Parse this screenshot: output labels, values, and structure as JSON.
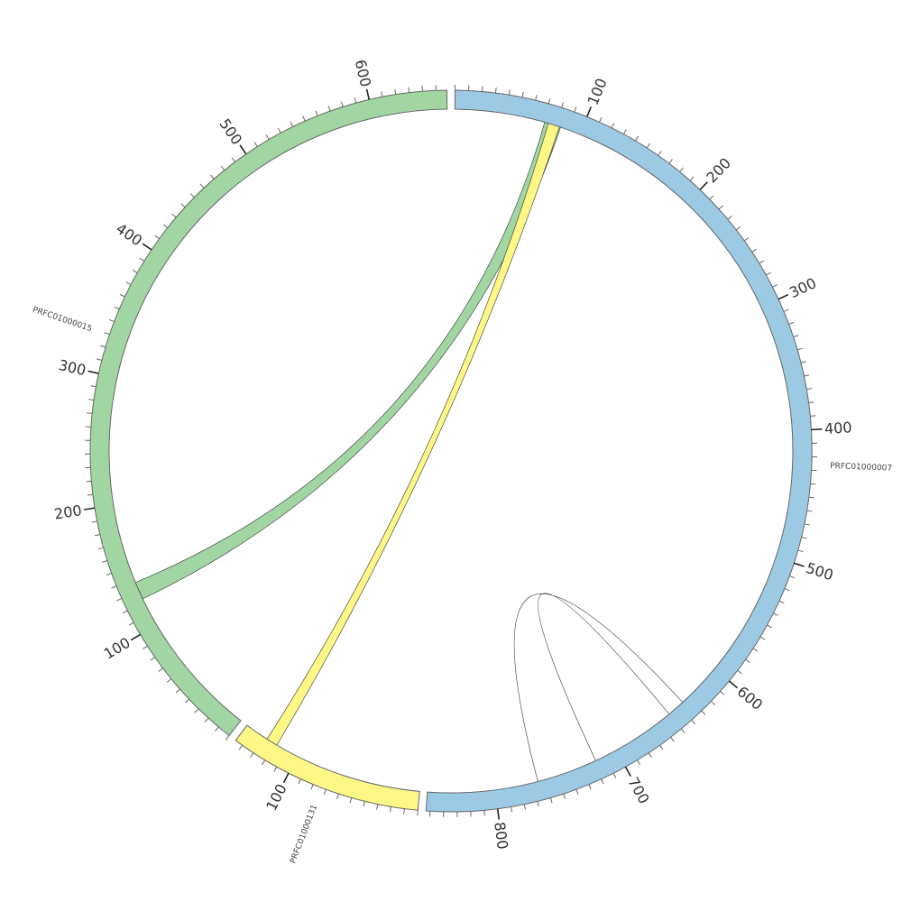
{
  "chart_data": {
    "type": "chord",
    "sequences": [
      {
        "name": "PRFC01000007",
        "start": 0,
        "end": 853,
        "major_ticks": [
          100,
          200,
          300,
          400,
          500,
          600,
          700,
          800
        ],
        "color": "#9ccae4"
      },
      {
        "name": "PRFC01000131",
        "start": 0,
        "end": 146,
        "major_ticks": [
          100
        ],
        "color": "#fdf786"
      },
      {
        "name": "PRFC01000015",
        "start": 0,
        "end": 658,
        "major_ticks": [
          100,
          200,
          300,
          400,
          500,
          600
        ],
        "color": "#a1d6a3"
      }
    ],
    "links": [
      {
        "source": "PRFC01000007",
        "source_range": [
          71,
          84
        ],
        "target": "PRFC01000015",
        "target_range": [
          123,
          137
        ],
        "color": "#a1d6a3"
      },
      {
        "source": "PRFC01000007",
        "source_range": [
          74,
          83
        ],
        "target": "PRFC01000131",
        "target_range": [
          118,
          127
        ],
        "color": "#fdf786"
      },
      {
        "source": "PRFC01000007",
        "source_range": [
          718,
          766
        ],
        "target": "PRFC01000007",
        "target_range": [
          636,
          650
        ],
        "color": "#ffffff"
      }
    ]
  }
}
